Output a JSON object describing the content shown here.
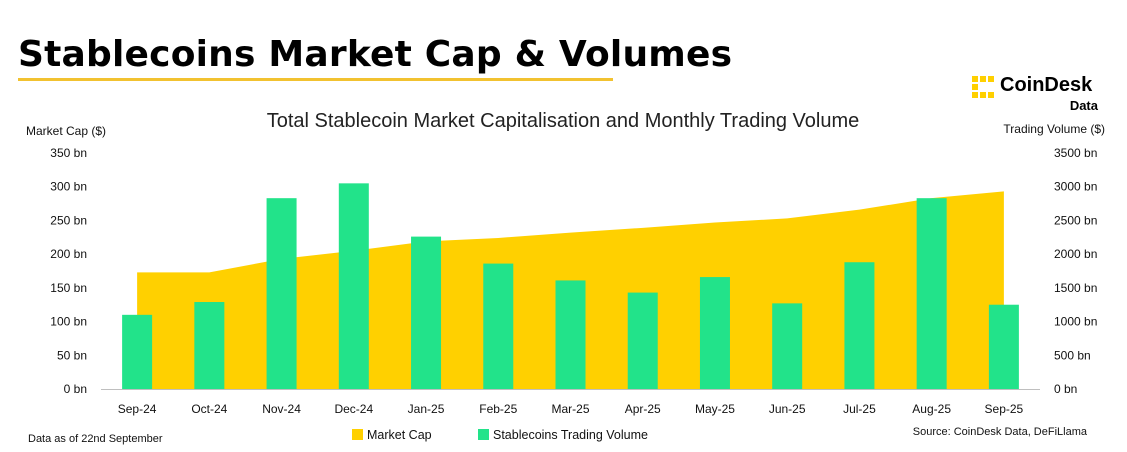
{
  "header": {
    "title": "Stablecoins Market Cap & Volumes",
    "brand_name": "CoinDesk",
    "brand_sub": "Data"
  },
  "colors": {
    "market_cap": "#FFD000",
    "volume": "#22E38A",
    "underline": "#F2C230"
  },
  "icons": {
    "brand": "coindesk-logo-icon"
  },
  "footer": {
    "data_note": "Data as of 22nd September",
    "source": "Source: CoinDesk Data, DeFiLlama"
  },
  "chart_data": {
    "type": "bar",
    "title": "Total Stablecoin Market Capitalisation and Monthly Trading Volume",
    "categories": [
      "Sep-24",
      "Oct-24",
      "Nov-24",
      "Dec-24",
      "Jan-25",
      "Feb-25",
      "Mar-25",
      "Apr-25",
      "May-25",
      "Jun-25",
      "Jul-25",
      "Aug-25",
      "Sep-25"
    ],
    "y_left": {
      "label": "Market Cap ($)",
      "ylim": [
        0,
        350
      ],
      "ticks": [
        "0 bn",
        "50 bn",
        "100 bn",
        "150 bn",
        "200 bn",
        "250 bn",
        "300 bn",
        "350 bn"
      ]
    },
    "y_right": {
      "label": "Trading Volume ($)",
      "ylim": [
        0,
        3500
      ],
      "ticks": [
        "0 bn",
        "500 bn",
        "1000 bn",
        "1500 bn",
        "2000 bn",
        "2500 bn",
        "3000 bn",
        "3500 bn"
      ]
    },
    "series": [
      {
        "name": "Market Cap",
        "type": "area",
        "axis": "left",
        "values": [
          173,
          173,
          193,
          205,
          219,
          224,
          232,
          239,
          247,
          253,
          266,
          283,
          293
        ]
      },
      {
        "name": "Stablecoins Trading Volume",
        "type": "bar",
        "axis": "right",
        "values": [
          1100,
          1290,
          2830,
          3050,
          2260,
          1860,
          1610,
          1430,
          1660,
          1270,
          1880,
          2830,
          1250
        ]
      }
    ],
    "grid": false,
    "legend": "bottom-center"
  }
}
